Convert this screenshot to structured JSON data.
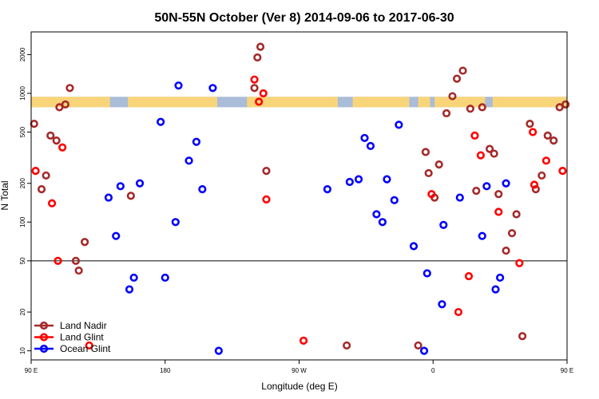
{
  "chart_data": {
    "type": "scatter",
    "title": "50N-55N October (Ver 8)   2014-09-06 to 2017-06-30",
    "xlabel": "Longitude (deg E)",
    "ylabel": "N Total",
    "xlim": [
      90,
      450
    ],
    "ylim_log": [
      8.5,
      3000
    ],
    "y_scale": "log",
    "x_ticks": [
      {
        "value": 90,
        "label": "90 E"
      },
      {
        "value": 180,
        "label": "180"
      },
      {
        "value": 270,
        "label": "90 W"
      },
      {
        "value": 360,
        "label": "0"
      },
      {
        "value": 450,
        "label": "90 E"
      }
    ],
    "y_ticks": [
      {
        "value": 10,
        "label": "10"
      },
      {
        "value": 20,
        "label": "20"
      },
      {
        "value": 50,
        "label": "50"
      },
      {
        "value": 100,
        "label": "100"
      },
      {
        "value": 200,
        "label": "200"
      },
      {
        "value": 500,
        "label": "500"
      },
      {
        "value": 1000,
        "label": "1000"
      },
      {
        "value": 2000,
        "label": "2000"
      }
    ],
    "reference_line": 50,
    "band": {
      "y_low": 780,
      "y_high": 940,
      "land_color": "#f9d57a",
      "ocean_color": "#a9bcd8"
    },
    "band_land_x": [
      [
        90,
        143
      ],
      [
        155,
        215
      ],
      [
        235,
        296
      ],
      [
        306,
        344
      ],
      [
        350,
        358
      ],
      [
        361,
        395
      ],
      [
        400,
        457
      ]
    ],
    "legend_position": "bottom-left",
    "series": [
      {
        "name": "Land Nadir",
        "color": "#a52a2a",
        "points": [
          [
            92,
            580
          ],
          [
            97,
            180
          ],
          [
            100,
            230
          ],
          [
            103,
            470
          ],
          [
            107,
            430
          ],
          [
            109,
            780
          ],
          [
            113,
            820
          ],
          [
            116,
            1100
          ],
          [
            120,
            50
          ],
          [
            122,
            42
          ],
          [
            126,
            70
          ],
          [
            157,
            160
          ],
          [
            242,
            1900
          ],
          [
            244,
            2300
          ],
          [
            240,
            1100
          ],
          [
            248,
            250
          ],
          [
            302,
            11
          ],
          [
            350,
            11
          ],
          [
            355,
            350
          ],
          [
            357,
            240
          ],
          [
            361,
            155
          ],
          [
            364,
            280
          ],
          [
            369,
            700
          ],
          [
            373,
            950
          ],
          [
            376,
            1300
          ],
          [
            380,
            1500
          ],
          [
            385,
            760
          ],
          [
            389,
            175
          ],
          [
            393,
            780
          ],
          [
            398,
            370
          ],
          [
            401,
            340
          ],
          [
            404,
            165
          ],
          [
            409,
            60
          ],
          [
            413,
            82
          ],
          [
            416,
            115
          ],
          [
            420,
            13
          ],
          [
            425,
            580
          ],
          [
            429,
            180
          ],
          [
            433,
            230
          ],
          [
            437,
            470
          ],
          [
            441,
            430
          ],
          [
            445,
            780
          ],
          [
            449,
            820
          ],
          [
            452,
            1100
          ],
          [
            456,
            50
          ],
          [
            458,
            42
          ],
          [
            462,
            70
          ],
          [
            493,
            160
          ]
        ]
      },
      {
        "name": "Land Glint",
        "color": "#ff0000",
        "points": [
          [
            93,
            250
          ],
          [
            108,
            50
          ],
          [
            111,
            380
          ],
          [
            104,
            140
          ],
          [
            129,
            11
          ],
          [
            240,
            1280
          ],
          [
            243,
            860
          ],
          [
            246,
            1000
          ],
          [
            248,
            150
          ],
          [
            273,
            12
          ],
          [
            359,
            165
          ],
          [
            377,
            20
          ],
          [
            384,
            38
          ],
          [
            392,
            330
          ],
          [
            404,
            120
          ],
          [
            388,
            470
          ],
          [
            418,
            48
          ],
          [
            427,
            500
          ],
          [
            428,
            195
          ],
          [
            436,
            300
          ],
          [
            447,
            250
          ],
          [
            454,
            140
          ],
          [
            459,
            380
          ],
          [
            470,
            11
          ]
        ]
      },
      {
        "name": "Ocean Glint",
        "color": "#0000ff",
        "points": [
          [
            142,
            155
          ],
          [
            147,
            78
          ],
          [
            150,
            190
          ],
          [
            156,
            30
          ],
          [
            159,
            37
          ],
          [
            163,
            200
          ],
          [
            177,
            600
          ],
          [
            180,
            37
          ],
          [
            187,
            100
          ],
          [
            189,
            1150
          ],
          [
            196,
            300
          ],
          [
            201,
            420
          ],
          [
            205,
            180
          ],
          [
            212,
            1100
          ],
          [
            216,
            10
          ],
          [
            289,
            180
          ],
          [
            304,
            205
          ],
          [
            310,
            215
          ],
          [
            314,
            450
          ],
          [
            318,
            390
          ],
          [
            322,
            115
          ],
          [
            326,
            100
          ],
          [
            329,
            215
          ],
          [
            334,
            148
          ],
          [
            337,
            570
          ],
          [
            347,
            65
          ],
          [
            354,
            10
          ],
          [
            356,
            40
          ],
          [
            366,
            23
          ],
          [
            367,
            95
          ],
          [
            378,
            155
          ],
          [
            393,
            78
          ],
          [
            396,
            190
          ],
          [
            402,
            30
          ],
          [
            405,
            37
          ],
          [
            409,
            200
          ]
        ]
      }
    ]
  }
}
